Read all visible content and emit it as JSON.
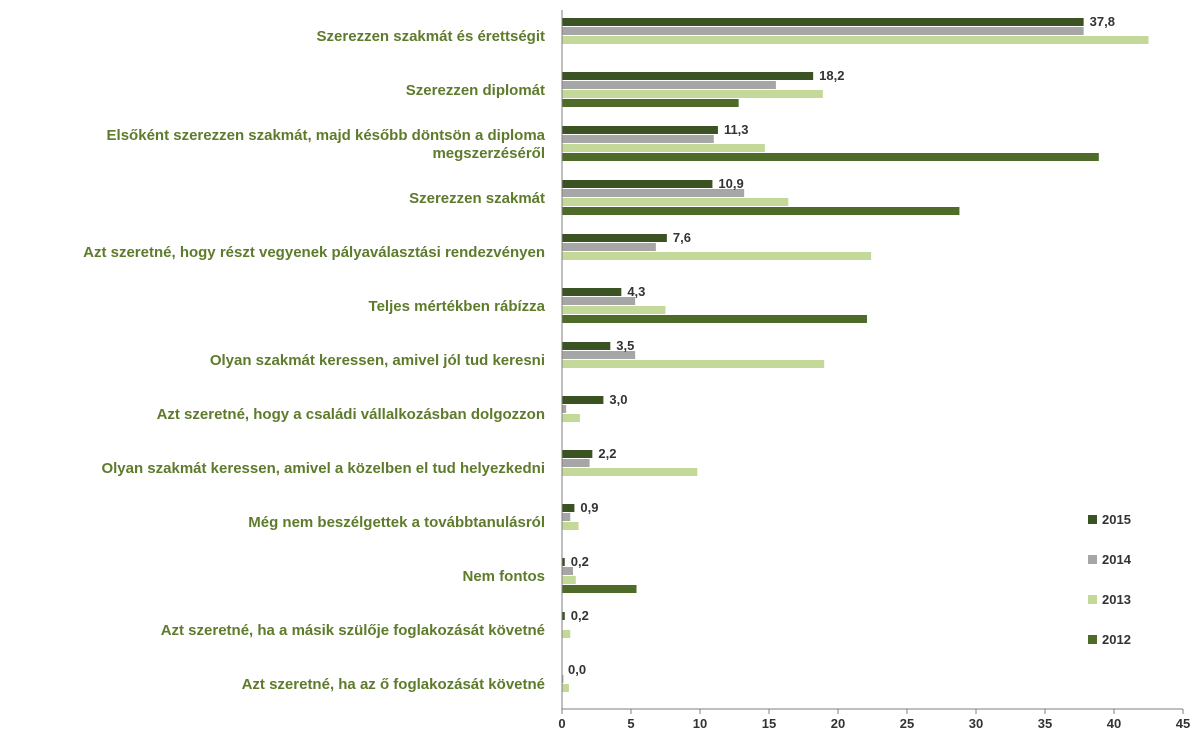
{
  "colors": {
    "label_text": "#5e7b2c",
    "axis": "#7f7f7f",
    "tick_text": "#333333"
  },
  "chart_data": {
    "type": "bar",
    "orientation": "horizontal",
    "categories": [
      "Szerezzen szakmát és érettségit",
      "Szerezzen diplomát",
      "Elsőként szerezzen szakmát, majd később döntsön a diploma megszerzéséről",
      "Szerezzen szakmát",
      "Azt szeretné, hogy részt vegyenek pályaválasztási rendezvényen",
      "Teljes mértékben rábízza",
      "Olyan szakmát keressen, amivel jól tud keresni",
      "Azt szeretné, hogy a családi vállalkozásban dolgozzon",
      "Olyan szakmát keressen, amivel a közelben el tud helyezkedni",
      "Még nem beszélgettek a továbbtanulásról",
      "Nem fontos",
      "Azt szeretné, ha a másik szülője foglakozását követné",
      "Azt szeretné, ha az ő foglakozását követné"
    ],
    "category_lines": [
      [
        "Szerezzen szakmát és érettségit"
      ],
      [
        "Szerezzen diplomát"
      ],
      [
        "Elsőként szerezzen szakmát, majd később döntsön a diploma",
        "megszerzéséről"
      ],
      [
        "Szerezzen szakmát"
      ],
      [
        "Azt szeretné, hogy részt vegyenek pályaválasztási rendezvényen"
      ],
      [
        "Teljes mértékben rábízza"
      ],
      [
        "Olyan szakmát keressen, amivel jól tud keresni"
      ],
      [
        "Azt szeretné, hogy a családi vállalkozásban dolgozzon"
      ],
      [
        "Olyan szakmát keressen, amivel a közelben el tud helyezkedni"
      ],
      [
        "Még nem beszélgettek a továbbtanulásról"
      ],
      [
        "Nem fontos"
      ],
      [
        "Azt szeretné, ha a másik szülője foglakozását követné"
      ],
      [
        "Azt szeretné, ha az ő foglakozását követné"
      ]
    ],
    "series": [
      {
        "name": "2015",
        "color": "#3b5323",
        "values": [
          37.8,
          18.2,
          11.3,
          10.9,
          7.6,
          4.3,
          3.5,
          3.0,
          2.2,
          0.9,
          0.2,
          0.2,
          0.0
        ],
        "labels": [
          "37,8",
          "18,2",
          "11,3",
          "10,9",
          "7,6",
          "4,3",
          "3,5",
          "3,0",
          "2,2",
          "0,9",
          "0,2",
          "0,2",
          "0,0"
        ]
      },
      {
        "name": "2014",
        "color": "#a6a6a6",
        "values": [
          37.8,
          15.5,
          11.0,
          13.2,
          6.8,
          5.3,
          5.3,
          0.3,
          2.0,
          0.6,
          0.8,
          null,
          0.1
        ]
      },
      {
        "name": "2013",
        "color": "#c4d89a",
        "values": [
          42.5,
          18.9,
          14.7,
          16.4,
          22.4,
          7.5,
          19.0,
          1.3,
          9.8,
          1.2,
          1.0,
          0.6,
          0.5
        ]
      },
      {
        "name": "2012",
        "color": "#4f6b2a",
        "values": [
          null,
          12.8,
          38.9,
          28.8,
          null,
          22.1,
          null,
          null,
          null,
          null,
          5.4,
          null,
          null
        ]
      }
    ],
    "legend": {
      "position": "right",
      "order": [
        "2015",
        "2014",
        "2013",
        "2012"
      ]
    },
    "xaxis": {
      "min": 0,
      "max": 45,
      "ticks": [
        0,
        5,
        10,
        15,
        20,
        25,
        30,
        35,
        40,
        45
      ]
    },
    "grid": false
  }
}
